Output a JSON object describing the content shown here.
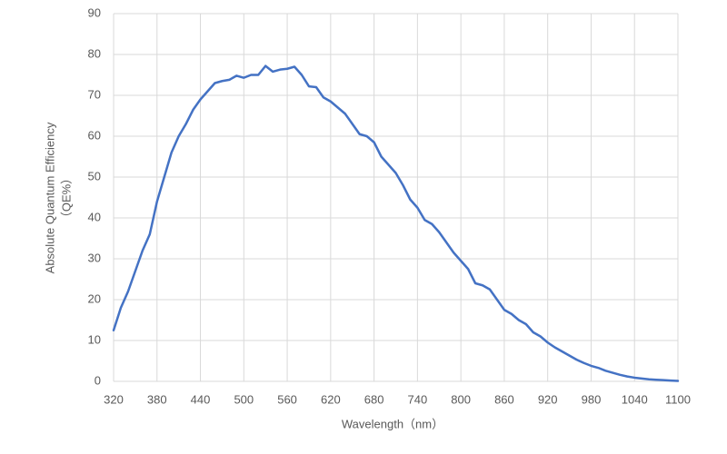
{
  "chart_data": {
    "type": "line",
    "xlabel": "Wavelength（nm）",
    "ylabel": [
      "Absolute Quantum Efficiency",
      "（QE%）"
    ],
    "x": [
      320,
      330,
      340,
      350,
      360,
      370,
      380,
      390,
      400,
      410,
      420,
      430,
      440,
      450,
      460,
      470,
      480,
      490,
      500,
      510,
      520,
      530,
      540,
      550,
      560,
      570,
      580,
      590,
      600,
      610,
      620,
      630,
      640,
      650,
      660,
      670,
      680,
      690,
      700,
      710,
      720,
      730,
      740,
      750,
      760,
      770,
      780,
      790,
      800,
      810,
      820,
      830,
      840,
      850,
      860,
      870,
      880,
      890,
      900,
      910,
      920,
      930,
      940,
      950,
      960,
      970,
      980,
      990,
      1000,
      1010,
      1020,
      1030,
      1040,
      1050,
      1060,
      1070,
      1080,
      1090,
      1100
    ],
    "series": [
      {
        "name": "QE",
        "color": "#4472c4",
        "values": [
          12.5,
          18,
          22,
          27,
          32,
          36,
          44,
          50,
          56,
          60,
          63,
          66.5,
          69,
          71,
          73,
          73.5,
          73.8,
          74.8,
          74.3,
          75,
          75,
          77.2,
          75.8,
          76.3,
          76.5,
          77,
          75,
          72.2,
          72,
          69.5,
          68.5,
          67,
          65.5,
          63,
          60.5,
          60,
          58.5,
          55,
          53,
          51,
          48,
          44.5,
          42.5,
          39.5,
          38.5,
          36.5,
          34,
          31.5,
          29.5,
          27.5,
          24,
          23.5,
          22.5,
          20,
          17.5,
          16.5,
          15,
          14,
          12,
          11,
          9.5,
          8.3,
          7.3,
          6.3,
          5.3,
          4.5,
          3.8,
          3.3,
          2.6,
          2.1,
          1.6,
          1.2,
          0.9,
          0.7,
          0.5,
          0.4,
          0.3,
          0.2,
          0.1
        ]
      }
    ],
    "xlim": [
      320,
      1100
    ],
    "xticks": [
      320,
      380,
      440,
      500,
      560,
      620,
      680,
      740,
      800,
      860,
      920,
      980,
      1040,
      1100
    ],
    "ylim": [
      0,
      90
    ],
    "yticks": [
      0,
      10,
      20,
      30,
      40,
      50,
      60,
      70,
      80,
      90
    ],
    "grid": true
  }
}
